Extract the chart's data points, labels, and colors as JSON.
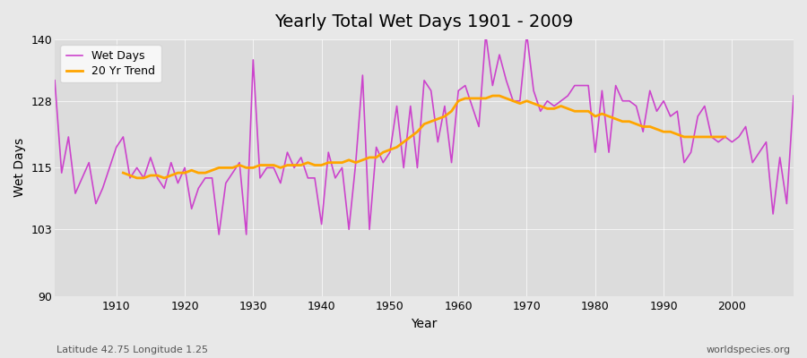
{
  "title": "Yearly Total Wet Days 1901 - 2009",
  "xlabel": "Year",
  "ylabel": "Wet Days",
  "subtitle": "Latitude 42.75 Longitude 1.25",
  "watermark": "worldspecies.org",
  "ylim": [
    90,
    140
  ],
  "yticks": [
    90,
    103,
    115,
    128,
    140
  ],
  "xlim": [
    1901,
    2009
  ],
  "xticks": [
    1910,
    1920,
    1930,
    1940,
    1950,
    1960,
    1970,
    1980,
    1990,
    2000
  ],
  "line_color": "#CC44CC",
  "trend_color": "#FFA500",
  "bg_color": "#E8E8E8",
  "plot_bg_color": "#DCDCDC",
  "years": [
    1901,
    1902,
    1903,
    1904,
    1905,
    1906,
    1907,
    1908,
    1909,
    1910,
    1911,
    1912,
    1913,
    1914,
    1915,
    1916,
    1917,
    1918,
    1919,
    1920,
    1921,
    1922,
    1923,
    1924,
    1925,
    1926,
    1927,
    1928,
    1929,
    1930,
    1931,
    1932,
    1933,
    1934,
    1935,
    1936,
    1937,
    1938,
    1939,
    1940,
    1941,
    1942,
    1943,
    1944,
    1945,
    1946,
    1947,
    1948,
    1949,
    1950,
    1951,
    1952,
    1953,
    1954,
    1955,
    1956,
    1957,
    1958,
    1959,
    1960,
    1961,
    1962,
    1963,
    1964,
    1965,
    1966,
    1967,
    1968,
    1969,
    1970,
    1971,
    1972,
    1973,
    1974,
    1975,
    1976,
    1977,
    1978,
    1979,
    1980,
    1981,
    1982,
    1983,
    1984,
    1985,
    1986,
    1987,
    1988,
    1989,
    1990,
    1991,
    1992,
    1993,
    1994,
    1995,
    1996,
    1997,
    1998,
    1999,
    2000,
    2001,
    2002,
    2003,
    2004,
    2005,
    2006,
    2007,
    2008,
    2009
  ],
  "wet_days": [
    132,
    114,
    121,
    110,
    113,
    116,
    108,
    111,
    115,
    119,
    121,
    113,
    115,
    113,
    117,
    113,
    111,
    116,
    112,
    115,
    107,
    111,
    113,
    113,
    102,
    112,
    114,
    116,
    102,
    136,
    113,
    115,
    115,
    112,
    118,
    115,
    117,
    113,
    113,
    104,
    118,
    113,
    115,
    103,
    116,
    133,
    103,
    119,
    116,
    118,
    127,
    115,
    127,
    115,
    132,
    130,
    120,
    127,
    116,
    130,
    131,
    127,
    123,
    141,
    131,
    137,
    132,
    128,
    128,
    141,
    130,
    126,
    128,
    127,
    128,
    129,
    131,
    131,
    131,
    118,
    130,
    118,
    131,
    128,
    128,
    127,
    122,
    130,
    126,
    128,
    125,
    126,
    116,
    118,
    125,
    127,
    121,
    120,
    121,
    120,
    121,
    123,
    116,
    118,
    120,
    106,
    117,
    108,
    129
  ],
  "trend_years": [
    1911,
    1912,
    1913,
    1914,
    1915,
    1916,
    1917,
    1918,
    1919,
    1920,
    1921,
    1922,
    1923,
    1924,
    1925,
    1926,
    1927,
    1928,
    1929,
    1930,
    1931,
    1932,
    1933,
    1934,
    1935,
    1936,
    1937,
    1938,
    1939,
    1940,
    1941,
    1942,
    1943,
    1944,
    1945,
    1946,
    1947,
    1948,
    1949,
    1950,
    1951,
    1952,
    1953,
    1954,
    1955,
    1956,
    1957,
    1958,
    1959,
    1960,
    1961,
    1962,
    1963,
    1964,
    1965,
    1966,
    1967,
    1968,
    1969,
    1970,
    1971,
    1972,
    1973,
    1974,
    1975,
    1976,
    1977,
    1978,
    1979,
    1980,
    1981,
    1982,
    1983,
    1984,
    1985,
    1986,
    1987,
    1988,
    1989,
    1990,
    1991,
    1992,
    1993,
    1994,
    1995,
    1996,
    1997,
    1998,
    1999
  ],
  "trend_values": [
    114.0,
    113.5,
    113.0,
    113.0,
    113.5,
    113.5,
    113.0,
    113.5,
    114.0,
    114.0,
    114.5,
    114.0,
    114.0,
    114.5,
    115.0,
    115.0,
    115.0,
    115.5,
    115.0,
    115.0,
    115.5,
    115.5,
    115.5,
    115.0,
    115.5,
    115.5,
    115.5,
    116.0,
    115.5,
    115.5,
    116.0,
    116.0,
    116.0,
    116.5,
    116.0,
    116.5,
    117.0,
    117.0,
    118.0,
    118.5,
    119.0,
    120.0,
    121.0,
    122.0,
    123.5,
    124.0,
    124.5,
    125.0,
    126.0,
    128.0,
    128.5,
    128.5,
    128.5,
    128.5,
    129.0,
    129.0,
    128.5,
    128.0,
    127.5,
    128.0,
    127.5,
    127.0,
    126.5,
    126.5,
    127.0,
    126.5,
    126.0,
    126.0,
    126.0,
    125.0,
    125.5,
    125.0,
    124.5,
    124.0,
    124.0,
    123.5,
    123.0,
    123.0,
    122.5,
    122.0,
    122.0,
    121.5,
    121.0,
    121.0,
    121.0,
    121.0,
    121.0,
    121.0,
    121.0
  ]
}
